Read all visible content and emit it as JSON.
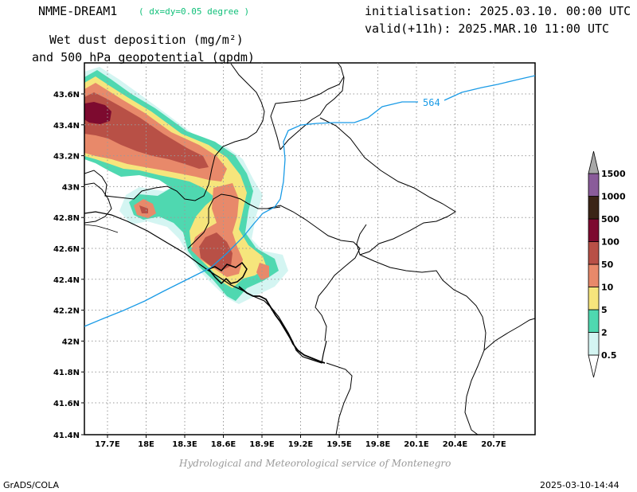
{
  "header": {
    "model": "NMME-DREAM1",
    "resolution": "( dx=dy=0.05 degree )",
    "initialisation": "initialisation: 2025.03.10. 00:00 UTC",
    "valid": "valid(+11h): 2025.MAR.10 11:00 UTC",
    "field_line1": "Wet dust deposition (mg/m²)",
    "field_line2": "and 500 hPa geopotential (gpdm)"
  },
  "map": {
    "lat_labels": [
      "43.6N",
      "43.4N",
      "43.2N",
      "43N",
      "42.8N",
      "42.6N",
      "42.4N",
      "42.2N",
      "42N",
      "41.8N",
      "41.6N",
      "41.4N"
    ],
    "lon_labels": [
      "17.7E",
      "18E",
      "18.3E",
      "18.6E",
      "18.9E",
      "19.2E",
      "19.5E",
      "19.8E",
      "20.1E",
      "20.4E",
      "20.7E"
    ],
    "contour_label": "564",
    "contour_color": "#1a9be6"
  },
  "colorbar": {
    "labels": [
      "0.5",
      "2",
      "5",
      "10",
      "50",
      "100",
      "500",
      "1000",
      "1500"
    ],
    "colors": [
      "#d4f5f2",
      "#4fd8b0",
      "#f6e57c",
      "#e8896a",
      "#b85046",
      "#7d0a2f",
      "#3b2416",
      "#8a5c9a",
      "#a8a8a8"
    ]
  },
  "footer": {
    "credit": "Hydrological and Meteorological service of Montenegro",
    "software": "GrADS/COLA",
    "timestamp": "2025-03-10-14:44"
  }
}
